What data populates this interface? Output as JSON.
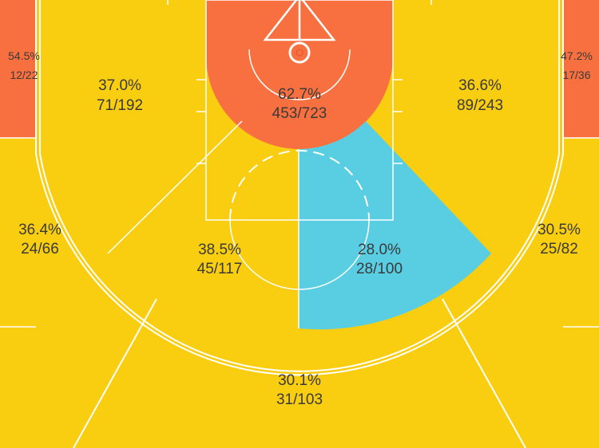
{
  "chart_data": {
    "type": "heatmap",
    "colors": {
      "hot": "#f8703f",
      "warm": "#f9cd10",
      "cold": "#59cde2",
      "line": "#ffffff",
      "text": "#3a3a3a"
    },
    "zones": [
      {
        "id": "left-corner-3",
        "pct": "54.5%",
        "made_attempts": "12/22",
        "made": 12,
        "attempts": 22,
        "color": "hot"
      },
      {
        "id": "right-corner-3",
        "pct": "47.2%",
        "made_attempts": "17/36",
        "made": 17,
        "attempts": 36,
        "color": "hot"
      },
      {
        "id": "restricted-area",
        "pct": "62.7%",
        "made_attempts": "453/723",
        "made": 453,
        "attempts": 723,
        "color": "hot"
      },
      {
        "id": "left-baseline-mid",
        "pct": "37.0%",
        "made_attempts": "71/192",
        "made": 71,
        "attempts": 192,
        "color": "warm"
      },
      {
        "id": "right-baseline-mid",
        "pct": "36.6%",
        "made_attempts": "89/243",
        "made": 89,
        "attempts": 243,
        "color": "warm"
      },
      {
        "id": "left-wing-3",
        "pct": "36.4%",
        "made_attempts": "24/66",
        "made": 24,
        "attempts": 66,
        "color": "warm"
      },
      {
        "id": "right-wing-3",
        "pct": "30.5%",
        "made_attempts": "25/82",
        "made": 25,
        "attempts": 82,
        "color": "warm"
      },
      {
        "id": "left-elbow-mid",
        "pct": "38.5%",
        "made_attempts": "45/117",
        "made": 45,
        "attempts": 117,
        "color": "warm"
      },
      {
        "id": "right-elbow-mid",
        "pct": "28.0%",
        "made_attempts": "28/100",
        "made": 28,
        "attempts": 100,
        "color": "cold"
      },
      {
        "id": "top-key-3",
        "pct": "30.1%",
        "made_attempts": "31/103",
        "made": 31,
        "attempts": 103,
        "color": "warm"
      }
    ]
  }
}
